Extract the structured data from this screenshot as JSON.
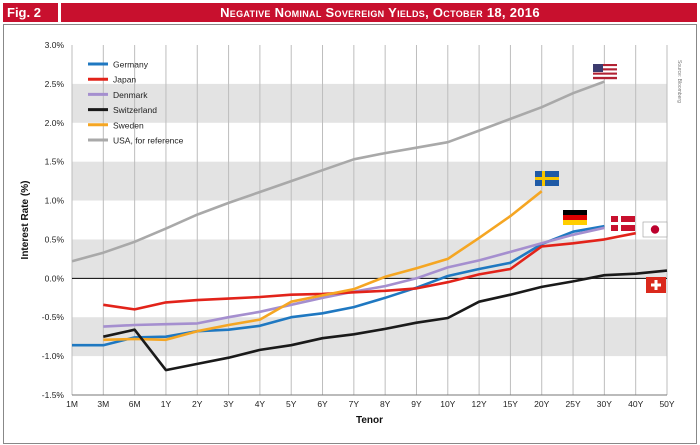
{
  "header": {
    "fig_label": "Fig. 2",
    "title": "Negative Nominal Sovereign Yields, October 18, 2016"
  },
  "source": "Source: Bloomberg",
  "colors": {
    "header": "#c8102e",
    "band": "#e3e3e3"
  },
  "chart_data": {
    "type": "line",
    "title": "Negative Nominal Sovereign Yields, October 18, 2016",
    "xlabel": "Tenor",
    "ylabel": "Interest Rate (%)",
    "ylim": [
      -1.5,
      3.0
    ],
    "y_ticks": [
      "3.0%",
      "2.5%",
      "2.0%",
      "1.5%",
      "1.0%",
      "0.5%",
      "0.0%",
      "-0.5%",
      "-1.0%",
      "-1.5%"
    ],
    "y_tick_values": [
      3.0,
      2.5,
      2.0,
      1.5,
      1.0,
      0.5,
      0.0,
      -0.5,
      -1.0,
      -1.5
    ],
    "categories": [
      "1M",
      "3M",
      "6M",
      "1Y",
      "2Y",
      "3Y",
      "4Y",
      "5Y",
      "6Y",
      "7Y",
      "8Y",
      "9Y",
      "10Y",
      "12Y",
      "15Y",
      "20Y",
      "25Y",
      "30Y",
      "40Y",
      "50Y"
    ],
    "legend_position": "top-left",
    "series": [
      {
        "name": "Germany",
        "color": "#1f78c1",
        "flag": "germany-flag",
        "values": [
          -0.86,
          -0.86,
          -0.76,
          -0.75,
          -0.68,
          -0.66,
          -0.61,
          -0.5,
          -0.45,
          -0.37,
          -0.25,
          -0.12,
          0.03,
          0.12,
          0.2,
          0.44,
          0.6,
          0.67,
          null,
          null
        ]
      },
      {
        "name": "Japan",
        "color": "#e2231a",
        "flag": "japan-flag",
        "values": [
          null,
          -0.34,
          -0.4,
          -0.31,
          -0.28,
          -0.26,
          -0.24,
          -0.21,
          -0.2,
          -0.18,
          -0.16,
          -0.13,
          -0.05,
          0.05,
          0.12,
          0.41,
          0.45,
          0.5,
          0.58,
          null
        ]
      },
      {
        "name": "Denmark",
        "color": "#a58fcf",
        "flag": "denmark-flag",
        "values": [
          null,
          -0.62,
          -0.6,
          -0.59,
          -0.58,
          -0.5,
          -0.43,
          -0.34,
          -0.25,
          -0.17,
          -0.1,
          0.0,
          0.14,
          0.23,
          0.34,
          0.45,
          0.56,
          0.65,
          null,
          null
        ]
      },
      {
        "name": "Switzerland",
        "color": "#1a1a1a",
        "flag": "switzerland-flag",
        "values": [
          null,
          -0.75,
          -0.66,
          -1.18,
          -1.1,
          -1.02,
          -0.92,
          -0.86,
          -0.77,
          -0.72,
          -0.65,
          -0.57,
          -0.51,
          -0.3,
          -0.21,
          -0.11,
          -0.04,
          0.04,
          0.06,
          0.1
        ]
      },
      {
        "name": "Sweden",
        "color": "#f5a623",
        "flag": "sweden-flag",
        "values": [
          null,
          -0.79,
          -0.78,
          -0.79,
          -0.68,
          -0.6,
          -0.53,
          -0.3,
          -0.22,
          -0.14,
          0.02,
          0.13,
          0.25,
          0.52,
          0.8,
          1.12,
          null,
          null,
          null,
          null
        ]
      },
      {
        "name": "USA, for reference",
        "color": "#a9a9a9",
        "flag": "usa-flag",
        "values": [
          0.22,
          0.33,
          0.47,
          0.64,
          0.82,
          0.97,
          1.11,
          1.25,
          1.39,
          1.53,
          1.61,
          1.68,
          1.75,
          1.9,
          2.05,
          2.2,
          2.38,
          2.53,
          null,
          null
        ]
      }
    ]
  }
}
